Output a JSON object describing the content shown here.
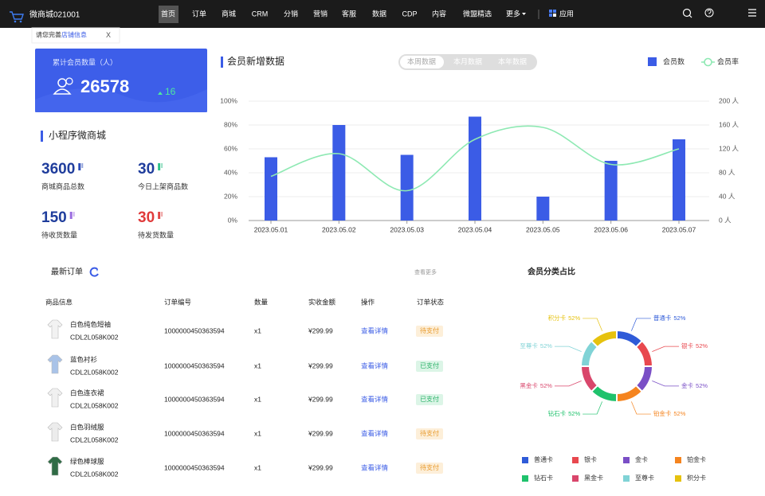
{
  "nav": {
    "logo": "微商城021001",
    "items": [
      "首页",
      "订单",
      "商城",
      "CRM",
      "分销",
      "营销",
      "客服",
      "数据",
      "CDP",
      "内容",
      "微盟精选",
      "更多"
    ],
    "apps": "应用"
  },
  "notice": {
    "text": "请您完善",
    "link": "店铺信息",
    "close": "X"
  },
  "member_card": {
    "label": "累计会员数量（人）",
    "value": 26578,
    "change": 16
  },
  "mini_program": {
    "title": "小程序微商城",
    "stats": [
      {
        "value": 3600,
        "label": "商城商品总数"
      },
      {
        "value": 30,
        "label": "今日上架商品数"
      },
      {
        "value": 150,
        "label": "待收货数量"
      },
      {
        "value": 30,
        "label": "待发货数量"
      }
    ]
  },
  "chart_data": [
    {
      "type": "bar",
      "title": "会员新增数据",
      "tabs": [
        "本周数据",
        "本月数据",
        "本年数据"
      ],
      "categories": [
        "2023.05.01",
        "2023.05.02",
        "2023.05.03",
        "2023.05.04",
        "2023.05.05",
        "2023.05.06",
        "2023.05.07"
      ],
      "series": [
        {
          "name": "会员数",
          "type": "bar",
          "axis": "y2",
          "color": "#3b5ce6",
          "values": [
            106,
            160,
            110,
            174,
            40,
            100,
            136
          ]
        },
        {
          "name": "会员率",
          "type": "line",
          "color": "#8ee9b3",
          "values": [
            37,
            56,
            25,
            68,
            78,
            47,
            60
          ]
        }
      ],
      "ylim": [
        0,
        100
      ],
      "yticks": [
        {
          "value": 0,
          "label": "0%"
        },
        {
          "value": 20,
          "label": "20%"
        },
        {
          "value": 40,
          "label": "40%"
        },
        {
          "value": 60,
          "label": "60%"
        },
        {
          "value": 80,
          "label": "80%"
        },
        {
          "value": 100,
          "label": "100%"
        }
      ],
      "y2lim": [
        0,
        200
      ],
      "y2ticks": [
        {
          "value": 0,
          "label": "0 人"
        },
        {
          "value": 40,
          "label": "40 人"
        },
        {
          "value": 80,
          "label": "80 人"
        },
        {
          "value": 120,
          "label": "120 人"
        },
        {
          "value": 160,
          "label": "160 人"
        },
        {
          "value": 200,
          "label": "200 人"
        }
      ],
      "grid": true
    },
    {
      "type": "pie",
      "donut": true,
      "title": "会员分类占比",
      "categories": [
        "普通卡",
        "银卡",
        "金卡",
        "铂金卡",
        "钻石卡",
        "黑金卡",
        "至尊卡",
        "积分卡"
      ],
      "values": [
        52,
        52,
        52,
        52,
        52,
        52,
        52,
        52
      ],
      "value_labels": [
        "52%",
        "52%",
        "52%",
        "52%",
        "52%",
        "52%",
        "52%",
        "52%"
      ],
      "colors": [
        "#2f5bd8",
        "#e8484f",
        "#7a4fc6",
        "#f5841f",
        "#1fc26c",
        "#d9466b",
        "#80d3d6",
        "#e6c20e"
      ]
    }
  ],
  "orders": {
    "title": "最新订单",
    "more": "查看更多",
    "headers": [
      "商品信息",
      "订单编号",
      "数量",
      "实收金额",
      "操作",
      "订单状态"
    ],
    "rows": [
      [
        "白色纯色短袖",
        "CDL2L058K002",
        "1000000450363594",
        "x1",
        "¥299.99",
        "查看详情",
        "待支付"
      ],
      [
        "蓝色衬衫",
        "CDL2L058K002",
        "1000000450363594",
        "x1",
        "¥299.99",
        "查看详情",
        "已支付"
      ],
      [
        "白色连衣裙",
        "CDL2L058K002",
        "1000000450363594",
        "x1",
        "¥299.99",
        "查看详情",
        "已支付"
      ],
      [
        "白色羽绒服",
        "CDL2L058K002",
        "1000000450363594",
        "x1",
        "¥299.99",
        "查看详情",
        "待支付"
      ],
      [
        "绿色棒球服",
        "CDL2L058K002",
        "1000000450363594",
        "x1",
        "¥299.99",
        "查看详情",
        "待支付"
      ]
    ]
  }
}
